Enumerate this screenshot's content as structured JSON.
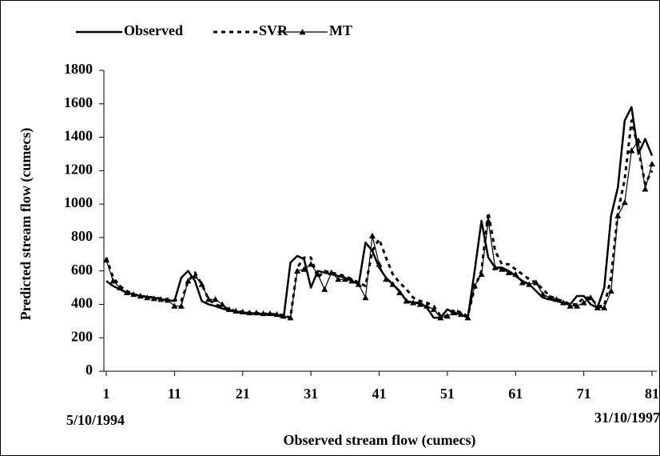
{
  "chart_data": {
    "type": "line",
    "xlabel": "Observed stream flow (cumecs)",
    "ylabel": "Predicted stream flow (cumecs)",
    "annotations": [
      "5/10/1994",
      "31/10/1997"
    ],
    "x": [
      1,
      2,
      3,
      4,
      5,
      6,
      7,
      8,
      9,
      10,
      11,
      12,
      13,
      14,
      15,
      16,
      17,
      18,
      19,
      20,
      21,
      22,
      23,
      24,
      25,
      26,
      27,
      28,
      29,
      30,
      31,
      32,
      33,
      34,
      35,
      36,
      37,
      38,
      39,
      40,
      41,
      42,
      43,
      44,
      45,
      46,
      47,
      48,
      49,
      50,
      51,
      52,
      53,
      54,
      55,
      56,
      57,
      58,
      59,
      60,
      61,
      62,
      63,
      64,
      65,
      66,
      67,
      68,
      69,
      70,
      71,
      72,
      73,
      74,
      75,
      76,
      77,
      78,
      79,
      80,
      81
    ],
    "series": [
      {
        "name": "Observed",
        "color": "#000000",
        "width": 2.5,
        "dash": "none",
        "marker": "none",
        "values": [
          540,
          510,
          490,
          470,
          460,
          450,
          445,
          440,
          430,
          425,
          420,
          560,
          600,
          540,
          420,
          400,
          390,
          375,
          365,
          355,
          350,
          345,
          345,
          340,
          340,
          335,
          320,
          650,
          690,
          670,
          500,
          600,
          590,
          580,
          570,
          560,
          540,
          520,
          770,
          720,
          620,
          560,
          520,
          480,
          420,
          410,
          410,
          380,
          320,
          320,
          370,
          350,
          340,
          320,
          600,
          900,
          680,
          620,
          620,
          600,
          570,
          540,
          520,
          480,
          440,
          430,
          420,
          410,
          400,
          450,
          450,
          400,
          380,
          500,
          930,
          1100,
          1500,
          1580,
          1300,
          1390,
          1290
        ]
      },
      {
        "name": "SVR",
        "color": "#000000",
        "width": 3,
        "dash": "5 5",
        "marker": "none",
        "values": [
          680,
          560,
          510,
          480,
          460,
          450,
          445,
          440,
          435,
          430,
          425,
          420,
          540,
          590,
          520,
          430,
          400,
          385,
          370,
          360,
          355,
          350,
          348,
          345,
          342,
          340,
          335,
          320,
          620,
          680,
          680,
          560,
          600,
          590,
          580,
          570,
          550,
          530,
          510,
          720,
          790,
          680,
          580,
          530,
          490,
          440,
          420,
          410,
          390,
          330,
          330,
          370,
          350,
          330,
          500,
          600,
          950,
          720,
          640,
          640,
          610,
          580,
          550,
          530,
          490,
          450,
          430,
          420,
          400,
          400,
          440,
          440,
          390,
          390,
          560,
          950,
          1150,
          1500,
          1330,
          1120,
          1200
        ]
      },
      {
        "name": "MT",
        "color": "#000000",
        "width": 1.2,
        "dash": "none",
        "marker": "triangle",
        "values": [
          665,
          540,
          500,
          470,
          460,
          450,
          440,
          435,
          430,
          425,
          390,
          390,
          540,
          570,
          520,
          430,
          430,
          400,
          370,
          360,
          355,
          350,
          350,
          345,
          345,
          340,
          330,
          320,
          600,
          610,
          640,
          580,
          490,
          590,
          550,
          550,
          540,
          520,
          440,
          810,
          640,
          550,
          520,
          470,
          420,
          410,
          400,
          390,
          370,
          320,
          330,
          350,
          340,
          320,
          510,
          580,
          900,
          620,
          610,
          590,
          580,
          530,
          520,
          530,
          460,
          440,
          430,
          410,
          390,
          390,
          410,
          440,
          380,
          380,
          480,
          930,
          1010,
          1320,
          1380,
          1090,
          1240
        ]
      }
    ],
    "xlim": [
      1,
      81
    ],
    "xticks": [
      1,
      11,
      21,
      31,
      41,
      51,
      61,
      71,
      81
    ],
    "ylim": [
      0,
      1800
    ],
    "yticks": [
      0,
      200,
      400,
      600,
      800,
      1000,
      1200,
      1400,
      1600,
      1800
    ]
  }
}
